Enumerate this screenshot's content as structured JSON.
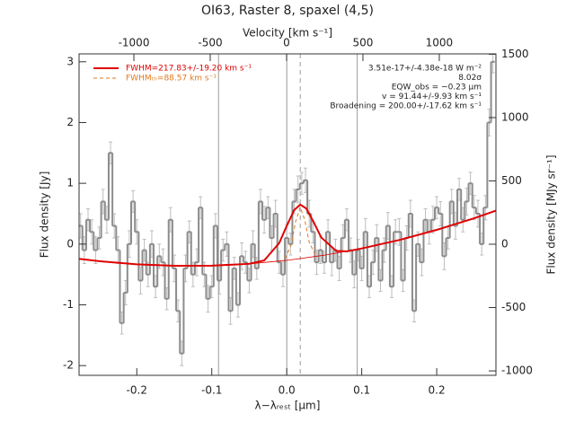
{
  "chart_data": {
    "type": "spectrum",
    "title": "OI63, Raster 8, spaxel (4,5)",
    "x_label": "λ−λᵣₑₛₜ [μm]",
    "x2_label": "Velocity [km s⁻¹]",
    "y_label": "Flux density [Jy]",
    "y2_label": "Flux density [MJy sr⁻¹]",
    "xlim": [
      -0.277,
      0.279
    ],
    "xticks": [
      -0.2,
      -0.1,
      {
        "value": 0,
        "label": "0.0"
      },
      0.1,
      0.2
    ],
    "x2lim": [
      -1359,
      1371
    ],
    "x2ticks": [
      -1000,
      -500,
      0,
      500,
      1000
    ],
    "ylim": [
      -2.16,
      3.13
    ],
    "yticks": [
      -2,
      -1,
      0,
      1,
      2,
      3
    ],
    "y2lim": [
      -1035,
      1503
    ],
    "y2ticks": [
      -1000,
      -500,
      0,
      500,
      1000,
      1500
    ],
    "bin_width": 0.005,
    "spectrum": {
      "color": "#8c8c8c",
      "error_color": "#bdbdbd",
      "x": [
        -0.275,
        -0.27,
        -0.265,
        -0.26,
        -0.255,
        -0.25,
        -0.245,
        -0.24,
        -0.235,
        -0.23,
        -0.225,
        -0.22,
        -0.215,
        -0.21,
        -0.205,
        -0.2,
        -0.195,
        -0.19,
        -0.185,
        -0.18,
        -0.175,
        -0.17,
        -0.165,
        -0.16,
        -0.155,
        -0.15,
        -0.145,
        -0.14,
        -0.135,
        -0.13,
        -0.125,
        -0.12,
        -0.115,
        -0.11,
        -0.105,
        -0.1,
        -0.095,
        -0.09,
        -0.085,
        -0.08,
        -0.075,
        -0.07,
        -0.065,
        -0.06,
        -0.055,
        -0.05,
        -0.045,
        -0.04,
        -0.035,
        -0.03,
        -0.025,
        -0.02,
        -0.015,
        -0.01,
        -0.005,
        0,
        0.005,
        0.01,
        0.015,
        0.02,
        0.025,
        0.03,
        0.035,
        0.04,
        0.045,
        0.05,
        0.055,
        0.06,
        0.065,
        0.07,
        0.075,
        0.08,
        0.085,
        0.09,
        0.095,
        0.1,
        0.105,
        0.11,
        0.115,
        0.12,
        0.125,
        0.13,
        0.135,
        0.14,
        0.145,
        0.15,
        0.155,
        0.16,
        0.165,
        0.17,
        0.175,
        0.18,
        0.185,
        0.19,
        0.195,
        0.2,
        0.205,
        0.21,
        0.215,
        0.22,
        0.225,
        0.23,
        0.235,
        0.24,
        0.245,
        0.25,
        0.255,
        0.26,
        0.265,
        0.27,
        0.275
      ],
      "values": [
        0.3,
        -0.1,
        0.4,
        0.2,
        -0.1,
        0.1,
        0.7,
        0.4,
        1.5,
        0.3,
        -0.1,
        -1.3,
        -0.8,
        0.0,
        0.7,
        0.2,
        -0.6,
        -0.1,
        -0.5,
        0.0,
        -0.7,
        -0.2,
        -0.3,
        -0.9,
        0.4,
        -0.4,
        -1.1,
        -1.8,
        -0.4,
        0.2,
        -0.5,
        -0.3,
        0.6,
        -0.5,
        -0.9,
        -0.7,
        0.3,
        -0.6,
        -0.1,
        0.0,
        -1.1,
        -0.4,
        -1.0,
        -0.2,
        -0.3,
        -0.6,
        0.0,
        -0.4,
        0.7,
        0.4,
        0.6,
        0.1,
        0.5,
        -0.3,
        -0.5,
        0.1,
        0.0,
        0.7,
        0.9,
        1.0,
        1.05,
        0.5,
        0.2,
        -0.3,
        -0.1,
        -0.3,
        0.2,
        -0.3,
        -0.1,
        -0.4,
        0.1,
        0.4,
        -0.1,
        -0.5,
        -0.1,
        -0.4,
        0.2,
        -0.7,
        -0.3,
        0.1,
        -0.6,
        -0.1,
        0.3,
        -0.7,
        0.2,
        0.2,
        -0.6,
        0.1,
        0.5,
        -1.1,
        0.0,
        -0.3,
        0.4,
        0.2,
        0.4,
        0.6,
        0.5,
        -0.2,
        0.1,
        0.7,
        0.3,
        0.9,
        0.4,
        0.7,
        1.0,
        0.6,
        0.5,
        0.0,
        0.6,
        2.0,
        3.0
      ],
      "errors": [
        0.2,
        0.22,
        0.18,
        0.2,
        0.22,
        0.18,
        0.2,
        0.22,
        0.18,
        0.2,
        0.22,
        0.18,
        0.2,
        0.22,
        0.18,
        0.2,
        0.22,
        0.18,
        0.2,
        0.22,
        0.18,
        0.2,
        0.22,
        0.18,
        0.2,
        0.22,
        0.18,
        0.2,
        0.22,
        0.18,
        0.2,
        0.22,
        0.18,
        0.2,
        0.22,
        0.18,
        0.2,
        0.22,
        0.18,
        0.2,
        0.22,
        0.18,
        0.2,
        0.22,
        0.18,
        0.2,
        0.22,
        0.18,
        0.2,
        0.22,
        0.18,
        0.2,
        0.22,
        0.18,
        0.2,
        0.22,
        0.18,
        0.2,
        0.22,
        0.18,
        0.2,
        0.22,
        0.18,
        0.2,
        0.22,
        0.18,
        0.2,
        0.22,
        0.18,
        0.2,
        0.22,
        0.18,
        0.2,
        0.22,
        0.18,
        0.2,
        0.22,
        0.18,
        0.2,
        0.22,
        0.18,
        0.2,
        0.22,
        0.18,
        0.2,
        0.22,
        0.18,
        0.2,
        0.22,
        0.18,
        0.2,
        0.22,
        0.18,
        0.2,
        0.22,
        0.18,
        0.2,
        0.22,
        0.18,
        0.2,
        0.22,
        0.18,
        0.2,
        0.22,
        0.18,
        0.2,
        0.22,
        0.18,
        0.2,
        0.22,
        0.18
      ]
    },
    "series": [
      {
        "name": "FWHM=217.83+/-19.20 km s⁻¹",
        "color": "#e00000",
        "style": "solid",
        "width": 2,
        "x": [
          -0.277,
          -0.25,
          -0.2,
          -0.15,
          -0.1,
          -0.05,
          -0.03,
          -0.01,
          0,
          0.01,
          0.018,
          0.026,
          0.036,
          0.046,
          0.066,
          0.08,
          0.1,
          0.15,
          0.2,
          0.25,
          0.279
        ],
        "values": [
          -0.242,
          -0.282,
          -0.333,
          -0.358,
          -0.355,
          -0.325,
          -0.269,
          0.018,
          0.3,
          0.561,
          0.649,
          0.587,
          0.358,
          0.109,
          -0.114,
          -0.12,
          -0.072,
          0.067,
          0.234,
          0.425,
          0.55
        ]
      },
      {
        "name": "FWHMₜₕ=88.57 km s⁻¹",
        "color": "#e07a20",
        "style": "dashed",
        "width": 1,
        "x": [
          -0.002,
          0.006,
          0.012,
          0.018,
          0.024,
          0.03,
          0.038
        ],
        "values": [
          -0.24,
          -0.008,
          0.38,
          0.609,
          0.397,
          0.03,
          -0.177
        ]
      }
    ],
    "continuum": {
      "color": "#e00000",
      "x": [
        -0.05,
        0,
        0.05,
        0.1
      ],
      "values": [
        -0.325,
        -0.268,
        -0.183,
        -0.072
      ]
    },
    "vlines": {
      "color": "#9a9a9a",
      "x": [
        -0.091,
        0,
        0.094
      ]
    },
    "line_center": {
      "color": "#9a9a9a",
      "x": 0.018
    },
    "annotations": [
      "3.51e-17+/-4.38e-18 W m⁻²",
      "8.02σ",
      "EQW_obs = −0.23 μm",
      "v = 91.44+/-9.93 km s⁻¹",
      "Broadening = 200.00+/-17.62 km s⁻¹"
    ]
  }
}
